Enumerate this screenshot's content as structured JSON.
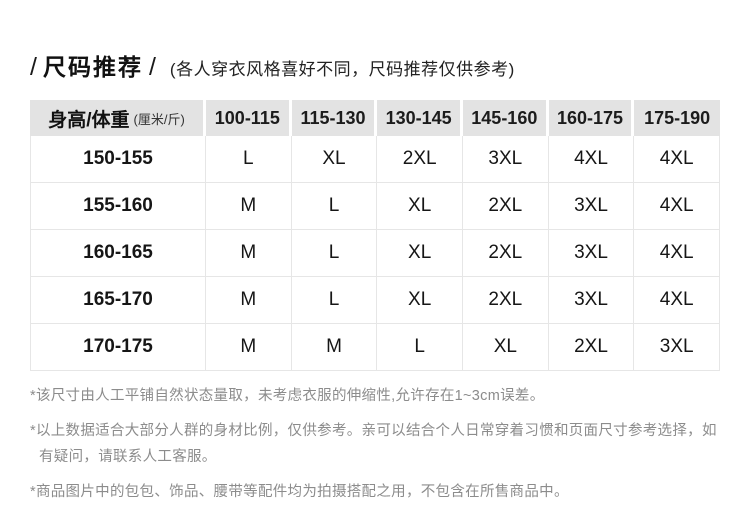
{
  "header": {
    "slash": "/",
    "title": "尺码推荐",
    "subtitle": "(各人穿衣风格喜好不同，尺码推荐仅供参考)"
  },
  "size_table": {
    "corner": {
      "main": "身高/体重",
      "unit": "(厘米/斤)"
    },
    "weight_columns": [
      "100-115",
      "115-130",
      "130-145",
      "145-160",
      "160-175",
      "175-190"
    ],
    "rows": [
      {
        "height": "150-155",
        "sizes": [
          "L",
          "XL",
          "2XL",
          "3XL",
          "4XL",
          "4XL"
        ]
      },
      {
        "height": "155-160",
        "sizes": [
          "M",
          "L",
          "XL",
          "2XL",
          "3XL",
          "4XL"
        ]
      },
      {
        "height": "160-165",
        "sizes": [
          "M",
          "L",
          "XL",
          "2XL",
          "3XL",
          "4XL"
        ]
      },
      {
        "height": "165-170",
        "sizes": [
          "M",
          "L",
          "XL",
          "2XL",
          "3XL",
          "4XL"
        ]
      },
      {
        "height": "170-175",
        "sizes": [
          "M",
          "M",
          "L",
          "XL",
          "2XL",
          "3XL"
        ]
      }
    ]
  },
  "notes": [
    "*该尺寸由人工平铺自然状态量取，未考虑衣服的伸缩性,允许存在1~3cm误差。",
    "*以上数据适合大部分人群的身材比例，仅供参考。亲可以结合个人日常穿着习惯和页面尺寸参考选择，如有疑问，请联系人工客服。",
    "*商品图片中的包包、饰品、腰带等配件均为拍摄搭配之用，不包含在所售商品中。"
  ],
  "colors": {
    "header_bg": "#e3e3e3",
    "grid_line": "#e6e6e6",
    "title_text": "#111111",
    "cell_text": "#161616",
    "note_text": "#8c8c8c"
  }
}
